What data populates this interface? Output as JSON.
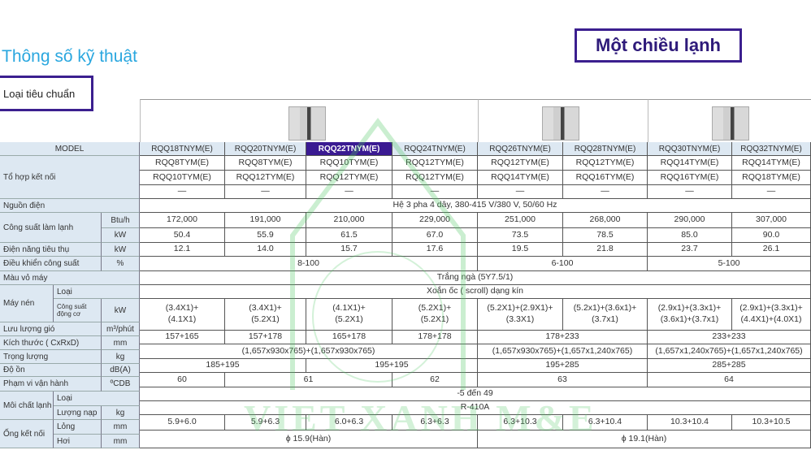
{
  "heading": "Thông số kỹ thuật",
  "mode_badge": "Một chiều lạnh",
  "standard_label": "Loại tiêu chuẩn",
  "watermark": "VIET XANH M&E",
  "colors": {
    "accent": "#3a1a92",
    "header_bg": "#dde8f2",
    "heading": "#2aa7df"
  },
  "labels": {
    "model": "MODEL",
    "combo": "Tổ hợp kết nối",
    "power_source": "Nguồn điện",
    "cooling_capacity": "Công suất làm lạnh",
    "unit_btuh": "Btu/h",
    "unit_kw": "kW",
    "power_input": "Điện năng tiêu thụ",
    "capacity_control": "Điều khiển công suất",
    "unit_percent": "%",
    "casing_color": "Màu vỏ máy",
    "compressor": "Máy nén",
    "type": "Loại",
    "motor_output": "Công suất động cơ",
    "airflow": "Lưu lượng gió",
    "unit_airflow": "m³/phút",
    "dimensions": "Kích thước ( CxRxD)",
    "unit_mm": "mm",
    "weight": "Trọng lượng",
    "unit_kg": "kg",
    "noise": "Độ ồn",
    "unit_dba": "dB(A)",
    "operating_range": "Phạm vi vận hành",
    "unit_cdb": "ºCDB",
    "refrigerant": "Môi chất lạnh",
    "charge": "Lượng nạp",
    "piping": "Ống kết nối",
    "liquid": "Lỏng",
    "gas": "Hơi"
  },
  "rows": [
    {
      "name": "model",
      "cells": [
        {
          "t": "RQQ18TNYM(E)"
        },
        {
          "t": "RQQ20TNYM(E)"
        },
        {
          "t": "RQQ22TNYM(E)",
          "hl": true
        },
        {
          "t": "RQQ24TNYM(E)"
        },
        {
          "t": "RQQ26TNYM(E)"
        },
        {
          "t": "RQQ28TNYM(E)"
        },
        {
          "t": "RQQ30TNYM(E)"
        },
        {
          "t": "RQQ32TNYM(E)"
        }
      ]
    },
    {
      "name": "combo-1",
      "cells": [
        {
          "t": "RQQ8TYM(E)"
        },
        {
          "t": "RQQ8TYM(E)"
        },
        {
          "t": "RQQ10TYM(E)"
        },
        {
          "t": "RQQ12TYM(E)"
        },
        {
          "t": "RQQ12TYM(E)"
        },
        {
          "t": "RQQ12TYM(E)"
        },
        {
          "t": "RQQ14TYM(E)"
        },
        {
          "t": "RQQ14TYM(E)"
        }
      ]
    },
    {
      "name": "combo-2",
      "cells": [
        {
          "t": "RQQ10TYM(E)"
        },
        {
          "t": "RQQ12TYM(E)"
        },
        {
          "t": "RQQ12TYM(E)"
        },
        {
          "t": "RQQ12TYM(E)"
        },
        {
          "t": "RQQ14TYM(E)"
        },
        {
          "t": "RQQ16TYM(E)"
        },
        {
          "t": "RQQ16TYM(E)"
        },
        {
          "t": "RQQ18TYM(E)"
        }
      ]
    },
    {
      "name": "combo-3",
      "cells": [
        {
          "t": "—"
        },
        {
          "t": "—"
        },
        {
          "t": "—"
        },
        {
          "t": "—"
        },
        {
          "t": "—"
        },
        {
          "t": "—"
        },
        {
          "t": "—"
        },
        {
          "t": "—"
        }
      ]
    },
    {
      "name": "power-source",
      "cells": [
        {
          "t": "Hệ 3 pha 4 dây, 380-415 V/380 V, 50/60 Hz",
          "s": 8
        }
      ]
    },
    {
      "name": "capacity-btuh",
      "cells": [
        {
          "t": "172,000"
        },
        {
          "t": "191,000"
        },
        {
          "t": "210,000"
        },
        {
          "t": "229,000"
        },
        {
          "t": "251,000"
        },
        {
          "t": "268,000"
        },
        {
          "t": "290,000"
        },
        {
          "t": "307,000"
        }
      ]
    },
    {
      "name": "capacity-kw",
      "cells": [
        {
          "t": "50.4"
        },
        {
          "t": "55.9"
        },
        {
          "t": "61.5"
        },
        {
          "t": "67.0"
        },
        {
          "t": "73.5"
        },
        {
          "t": "78.5"
        },
        {
          "t": "85.0"
        },
        {
          "t": "90.0"
        }
      ]
    },
    {
      "name": "power-input",
      "cells": [
        {
          "t": "12.1"
        },
        {
          "t": "14.0"
        },
        {
          "t": "15.7"
        },
        {
          "t": "17.6"
        },
        {
          "t": "19.5"
        },
        {
          "t": "21.8"
        },
        {
          "t": "23.7"
        },
        {
          "t": "26.1"
        }
      ]
    },
    {
      "name": "capacity-control",
      "cells": [
        {
          "t": "8-100",
          "s": 4
        },
        {
          "t": "6-100",
          "s": 2
        },
        {
          "t": "5-100",
          "s": 2
        }
      ]
    },
    {
      "name": "casing-color",
      "cells": [
        {
          "t": "Trắng ngà (5Y7.5/1)",
          "s": 8
        }
      ]
    },
    {
      "name": "compressor-type",
      "cells": [
        {
          "t": "Xoắn ốc ( scroll) dạng kín",
          "s": 8
        }
      ]
    },
    {
      "name": "motor-output",
      "cells": [
        {
          "t": "(3.4X1)+\n(4.1X1)"
        },
        {
          "t": "(3.4X1)+\n(5.2X1)"
        },
        {
          "t": "(4.1X1)+\n(5.2X1)"
        },
        {
          "t": "(5.2X1)+\n(5.2X1)"
        },
        {
          "t": "(5.2X1)+(2.9X1)+\n(3.3X1)"
        },
        {
          "t": "(5.2x1)+(3.6x1)+\n(3.7x1)"
        },
        {
          "t": "(2.9x1)+(3.3x1)+\n(3.6x1)+(3.7x1)"
        },
        {
          "t": "(2.9x1)+(3.3x1)+\n(4.4X1)+(4.0X1)"
        }
      ]
    },
    {
      "name": "airflow",
      "cells": [
        {
          "t": "157+165"
        },
        {
          "t": "157+178"
        },
        {
          "t": "165+178"
        },
        {
          "t": "178+178"
        },
        {
          "t": "178+233",
          "s": 2
        },
        {
          "t": "233+233",
          "s": 2
        }
      ]
    },
    {
      "name": "dimensions",
      "cells": [
        {
          "t": "(1,657x930x765)+(1,657x930x765)",
          "s": 4
        },
        {
          "t": "(1,657x930x765)+(1,657x1,240x765)",
          "s": 2
        },
        {
          "t": "(1,657x1,240x765)+(1,657x1,240x765)",
          "s": 2
        }
      ]
    },
    {
      "name": "weight",
      "cells": [
        {
          "t": "185+195",
          "s": 2
        },
        {
          "t": "195+195",
          "s": 2
        },
        {
          "t": "195+285",
          "s": 2
        },
        {
          "t": "285+285",
          "s": 2
        }
      ]
    },
    {
      "name": "noise",
      "cells": [
        {
          "t": "60"
        },
        {
          "t": "61",
          "s": 2
        },
        {
          "t": "62"
        },
        {
          "t": "63",
          "s": 2
        },
        {
          "t": "64",
          "s": 2
        }
      ]
    },
    {
      "name": "operating-range",
      "cells": [
        {
          "t": "-5 đến 49",
          "s": 8
        }
      ]
    },
    {
      "name": "refrigerant",
      "cells": [
        {
          "t": "R-410A",
          "s": 8
        }
      ]
    },
    {
      "name": "pipe-liquid",
      "cells": [
        {
          "t": "5.9+6.0"
        },
        {
          "t": "5.9+6.3"
        },
        {
          "t": "6.0+6.3"
        },
        {
          "t": "6.3+6.3"
        },
        {
          "t": "6.3+10.3"
        },
        {
          "t": "6.3+10.4"
        },
        {
          "t": "10.3+10.4"
        },
        {
          "t": "10.3+10.5"
        }
      ]
    },
    {
      "name": "pipe-gas",
      "cells": [
        {
          "t": "ϕ  15.9(Hàn)",
          "s": 4
        },
        {
          "t": "ϕ  19.1(Hàn)",
          "s": 4
        }
      ]
    }
  ]
}
